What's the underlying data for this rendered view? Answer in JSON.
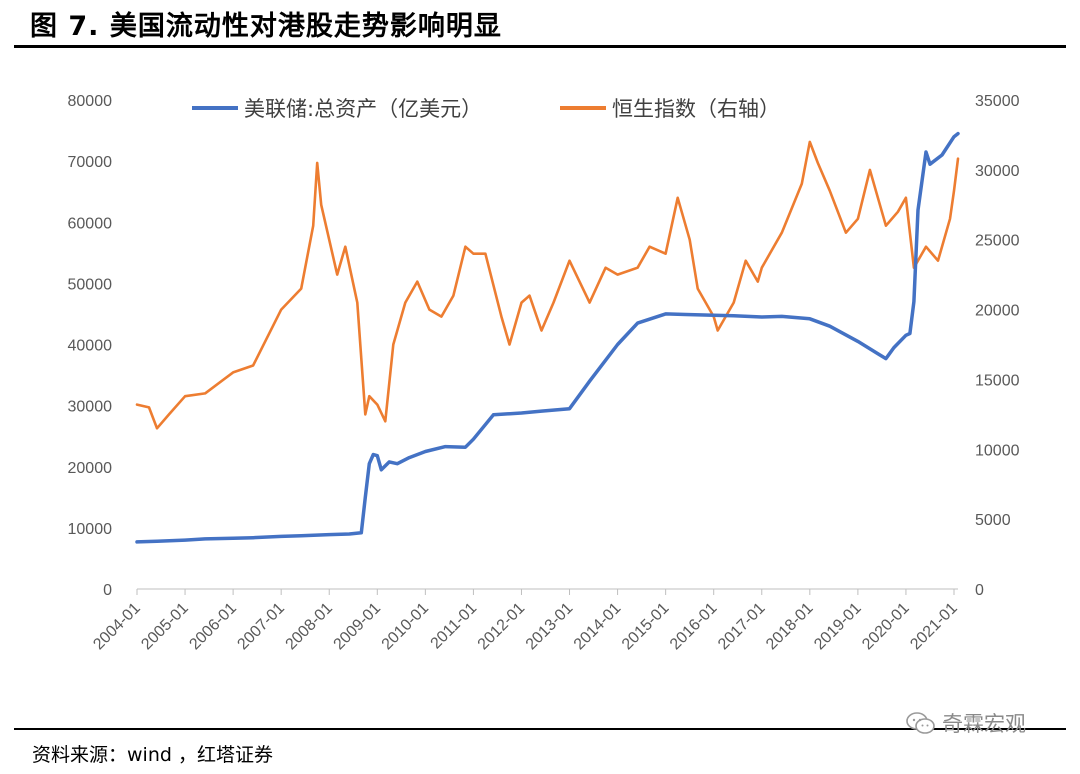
{
  "header": {
    "title": "图 7. 美国流动性对港股走势影响明显"
  },
  "footer": {
    "source": "资料来源：wind ，红塔证券",
    "watermark": "奇霖宏观"
  },
  "chart_data": {
    "type": "line",
    "title": "图 7. 美国流动性对港股走势影响明显",
    "x_tick_labels": [
      "2004-01",
      "2005-01",
      "2006-01",
      "2007-01",
      "2008-01",
      "2009-01",
      "2010-01",
      "2011-01",
      "2012-01",
      "2013-01",
      "2014-01",
      "2015-01",
      "2016-01",
      "2017-01",
      "2018-01",
      "2019-01",
      "2020-01",
      "2021-01"
    ],
    "x_range": [
      "2004-01",
      "2021-02"
    ],
    "y_left": {
      "ticks": [
        "0",
        "10000",
        "20000",
        "30000",
        "40000",
        "50000",
        "60000",
        "70000",
        "80000"
      ],
      "range": [
        0,
        80000
      ]
    },
    "y_right": {
      "ticks": [
        "0",
        "5000",
        "10000",
        "15000",
        "20000",
        "25000",
        "30000",
        "35000"
      ],
      "range": [
        0,
        35000
      ]
    },
    "legend_position": "top",
    "grid": false,
    "series": [
      {
        "name": "美联储:总资产（亿美元）",
        "axis": "left",
        "color": "#4472C4",
        "points": [
          [
            "2004-01",
            7700
          ],
          [
            "2004-06",
            7800
          ],
          [
            "2005-01",
            8000
          ],
          [
            "2005-06",
            8200
          ],
          [
            "2006-01",
            8300
          ],
          [
            "2006-06",
            8400
          ],
          [
            "2007-01",
            8600
          ],
          [
            "2007-06",
            8700
          ],
          [
            "2008-01",
            8900
          ],
          [
            "2008-06",
            9000
          ],
          [
            "2008-09",
            9200
          ],
          [
            "2008-10",
            15000
          ],
          [
            "2008-11",
            20500
          ],
          [
            "2008-12",
            22000
          ],
          [
            "2009-01",
            21800
          ],
          [
            "2009-02",
            19500
          ],
          [
            "2009-04",
            20800
          ],
          [
            "2009-06",
            20500
          ],
          [
            "2009-09",
            21500
          ],
          [
            "2010-01",
            22500
          ],
          [
            "2010-06",
            23300
          ],
          [
            "2010-11",
            23200
          ],
          [
            "2011-01",
            24500
          ],
          [
            "2011-06",
            28500
          ],
          [
            "2012-01",
            28800
          ],
          [
            "2012-06",
            29100
          ],
          [
            "2013-01",
            29500
          ],
          [
            "2013-06",
            34000
          ],
          [
            "2014-01",
            40000
          ],
          [
            "2014-06",
            43500
          ],
          [
            "2015-01",
            45000
          ],
          [
            "2015-06",
            44900
          ],
          [
            "2016-01",
            44800
          ],
          [
            "2016-06",
            44700
          ],
          [
            "2017-01",
            44500
          ],
          [
            "2017-06",
            44600
          ],
          [
            "2018-01",
            44200
          ],
          [
            "2018-06",
            43000
          ],
          [
            "2019-01",
            40500
          ],
          [
            "2019-06",
            38500
          ],
          [
            "2019-08",
            37700
          ],
          [
            "2019-10",
            39500
          ],
          [
            "2020-01",
            41500
          ],
          [
            "2020-02",
            41800
          ],
          [
            "2020-03",
            47000
          ],
          [
            "2020-04",
            62000
          ],
          [
            "2020-06",
            71500
          ],
          [
            "2020-07",
            69500
          ],
          [
            "2020-10",
            71000
          ],
          [
            "2021-01",
            74000
          ],
          [
            "2021-02",
            74500
          ]
        ]
      },
      {
        "name": "恒生指数（右轴）",
        "axis": "right",
        "color": "#ED7D31",
        "points": [
          [
            "2004-01",
            13200
          ],
          [
            "2004-04",
            13000
          ],
          [
            "2004-06",
            11500
          ],
          [
            "2004-09",
            12500
          ],
          [
            "2005-01",
            13800
          ],
          [
            "2005-06",
            14000
          ],
          [
            "2006-01",
            15500
          ],
          [
            "2006-06",
            16000
          ],
          [
            "2007-01",
            20000
          ],
          [
            "2007-06",
            21500
          ],
          [
            "2007-09",
            26000
          ],
          [
            "2007-10",
            30500
          ],
          [
            "2007-11",
            27500
          ],
          [
            "2008-01",
            25000
          ],
          [
            "2008-03",
            22500
          ],
          [
            "2008-05",
            24500
          ],
          [
            "2008-08",
            20500
          ],
          [
            "2008-10",
            12500
          ],
          [
            "2008-11",
            13800
          ],
          [
            "2009-01",
            13200
          ],
          [
            "2009-03",
            12000
          ],
          [
            "2009-05",
            17500
          ],
          [
            "2009-08",
            20500
          ],
          [
            "2009-11",
            22000
          ],
          [
            "2010-02",
            20000
          ],
          [
            "2010-05",
            19500
          ],
          [
            "2010-08",
            21000
          ],
          [
            "2010-11",
            24500
          ],
          [
            "2011-01",
            24000
          ],
          [
            "2011-04",
            24000
          ],
          [
            "2011-08",
            19500
          ],
          [
            "2011-10",
            17500
          ],
          [
            "2012-01",
            20500
          ],
          [
            "2012-03",
            21000
          ],
          [
            "2012-06",
            18500
          ],
          [
            "2012-09",
            20500
          ],
          [
            "2013-01",
            23500
          ],
          [
            "2013-06",
            20500
          ],
          [
            "2013-10",
            23000
          ],
          [
            "2014-01",
            22500
          ],
          [
            "2014-06",
            23000
          ],
          [
            "2014-09",
            24500
          ],
          [
            "2015-01",
            24000
          ],
          [
            "2015-04",
            28000
          ],
          [
            "2015-07",
            25000
          ],
          [
            "2015-09",
            21500
          ],
          [
            "2016-01",
            19500
          ],
          [
            "2016-02",
            18500
          ],
          [
            "2016-06",
            20500
          ],
          [
            "2016-09",
            23500
          ],
          [
            "2016-12",
            22000
          ],
          [
            "2017-01",
            23000
          ],
          [
            "2017-06",
            25500
          ],
          [
            "2017-11",
            29000
          ],
          [
            "2018-01",
            32000
          ],
          [
            "2018-03",
            30500
          ],
          [
            "2018-06",
            28500
          ],
          [
            "2018-10",
            25500
          ],
          [
            "2019-01",
            26500
          ],
          [
            "2019-04",
            30000
          ],
          [
            "2019-06",
            28000
          ],
          [
            "2019-08",
            26000
          ],
          [
            "2019-11",
            27000
          ],
          [
            "2020-01",
            28000
          ],
          [
            "2020-03",
            23000
          ],
          [
            "2020-06",
            24500
          ],
          [
            "2020-09",
            23500
          ],
          [
            "2020-12",
            26500
          ],
          [
            "2021-01",
            28500
          ],
          [
            "2021-02",
            30800
          ]
        ]
      }
    ]
  }
}
